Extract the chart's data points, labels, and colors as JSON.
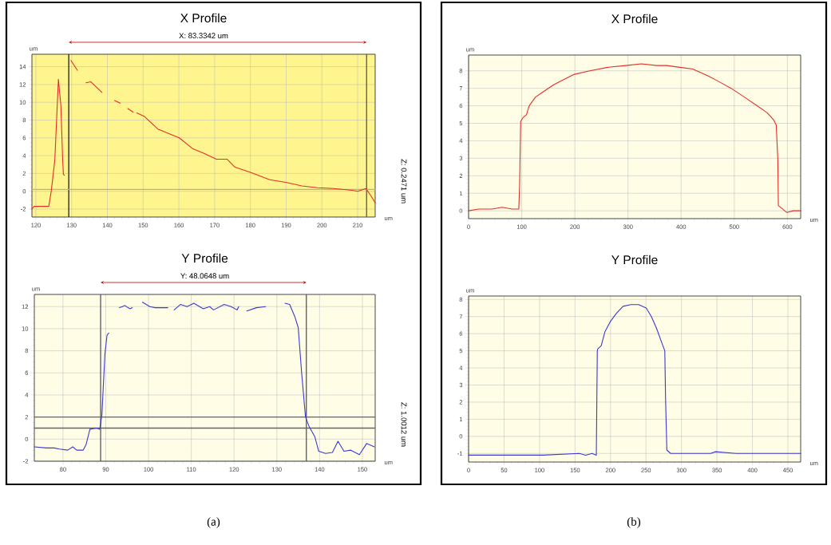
{
  "chart_data": [
    {
      "type": "line",
      "title": "X Profile",
      "xlabel": "um",
      "ylabel": "um",
      "annotations": [
        "X: 83.3342 um",
        "Z: 0.2471 um"
      ],
      "xlim": [
        118.9,
        214.9
      ],
      "ylim": [
        -2.9,
        15.4
      ],
      "xticks": [
        120,
        130,
        140,
        150,
        160,
        170,
        180,
        190,
        200,
        210
      ],
      "yticks": [
        -2,
        0,
        2,
        4,
        6,
        8,
        10,
        12,
        14
      ],
      "grid": true,
      "marker": "none",
      "line_style": "solid",
      "ref_lines": [
        {
          "axis": "x",
          "value": 129.2,
          "color": "#222222"
        },
        {
          "axis": "x",
          "value": 212.5,
          "color": "#555566"
        },
        {
          "axis": "y",
          "value": 0.2,
          "color": "#b0b0a8"
        }
      ],
      "series": [
        {
          "color": "#e0302a",
          "x": [
            118.9,
            119.5,
            123.6,
            124.3,
            125.3,
            126.3,
            127,
            127.5,
            127.7,
            128.0,
            128.9,
            129.8,
            131.6,
            132.8,
            134,
            135.4,
            138.5,
            140.7,
            142.0,
            143.6,
            144.4,
            145.7,
            147.2,
            147.7,
            148.2,
            150.4,
            154.1,
            160.1,
            163.8,
            166.8,
            170.5,
            173.5,
            175.7,
            180.2,
            185.4,
            189.9,
            194.4,
            198.8,
            203.3,
            208.5,
            210,
            212.3,
            213.7,
            214.9
          ],
          "values": [
            -2.0,
            -1.7,
            -1.7,
            0.0,
            3.5,
            12.6,
            9.6,
            3.5,
            1.9,
            1.8,
            null,
            14.7,
            13.6,
            null,
            12.2,
            12.3,
            11.1,
            null,
            10.2,
            9.9,
            null,
            9.3,
            8.9,
            null,
            8.8,
            8.4,
            7.0,
            6.0,
            4.8,
            4.3,
            3.6,
            3.6,
            2.7,
            2.1,
            1.3,
            1.0,
            0.6,
            0.4,
            0.3,
            0.1,
            0.0,
            0.3,
            -0.5,
            -1.3
          ]
        }
      ]
    },
    {
      "type": "line",
      "title": "Y Profile",
      "xlabel": "um",
      "ylabel": "um",
      "annotations": [
        "Y: 48.0648 um",
        "Z: 1.0012 um",
        "(a)"
      ],
      "xlim": [
        73.3,
        153
      ],
      "ylim": [
        -2,
        13.1
      ],
      "xticks": [
        80,
        90,
        100,
        110,
        120,
        130,
        140,
        150
      ],
      "yticks": [
        -2,
        0,
        2,
        4,
        6,
        8,
        10,
        12
      ],
      "grid": true,
      "marker": "none",
      "line_style": "solid",
      "ref_lines": [
        {
          "axis": "x",
          "value": 88.8,
          "color": "#555566"
        },
        {
          "axis": "x",
          "value": 136.9,
          "color": "#555566"
        },
        {
          "axis": "y",
          "value": 2.0,
          "color": "#666666"
        },
        {
          "axis": "y",
          "value": 1.0,
          "color": "#666666"
        }
      ],
      "series": [
        {
          "color": "#3a3ad0",
          "x": [
            73.3,
            76.1,
            77.9,
            79.2,
            81.1,
            82.3,
            83.2,
            84.7,
            85.4,
            86.3,
            87.9,
            88.6,
            89.1,
            89.8,
            90.3,
            90.7,
            92,
            93.2,
            93.9,
            94.5,
            95.2,
            95.7,
            96.2,
            97.3,
            98.6,
            100.3,
            101.6,
            104.5,
            105.2,
            106,
            107.5,
            109,
            110.6,
            112.8,
            114.3,
            115.2,
            117.7,
            119.3,
            120.7,
            121.1,
            122,
            123,
            125.2,
            127.4,
            129.6,
            131.9,
            133,
            134.2,
            135,
            135.8,
            136.7,
            137.6,
            138.9,
            139.8,
            141.4,
            143,
            144.3,
            145.7,
            147.3,
            149.3,
            151,
            152.8
          ],
          "values": [
            -0.7,
            -0.8,
            -0.8,
            -0.9,
            -1.0,
            -0.7,
            -1.0,
            -1.0,
            -0.5,
            0.9,
            1.0,
            0.9,
            2.2,
            7.7,
            9.4,
            9.6,
            null,
            11.9,
            12.0,
            12.1,
            11.9,
            11.8,
            11.9,
            null,
            12.4,
            12.0,
            11.9,
            11.9,
            null,
            11.7,
            12.2,
            12.0,
            12.3,
            11.8,
            12.0,
            11.7,
            12.2,
            12.0,
            11.7,
            12.0,
            null,
            11.6,
            11.9,
            12.0,
            null,
            12.3,
            12.2,
            11.1,
            10.1,
            6.0,
            2.0,
            1.1,
            0.2,
            -1.1,
            -1.3,
            -1.2,
            -0.2,
            -1.1,
            -1.0,
            -1.4,
            -0.4,
            -0.7
          ]
        }
      ]
    },
    {
      "type": "line",
      "title": "X Profile",
      "xlabel": "um",
      "ylabel": "um",
      "xlim": [
        0,
        625
      ],
      "ylim": [
        -0.45,
        8.9
      ],
      "xticks": [
        0,
        100,
        200,
        300,
        400,
        500,
        600
      ],
      "yticks": [
        0,
        1,
        2,
        3,
        4,
        5,
        6,
        7,
        8
      ],
      "grid": true,
      "marker": "none",
      "line_style": "solid",
      "series": [
        {
          "color": "#e0302a",
          "x": [
            0,
            19,
            44,
            63,
            82,
            94.5,
            96,
            98,
            101.8,
            109,
            114,
            126,
            140.6,
            160,
            179,
            199,
            228,
            262,
            296,
            325,
            354,
            373,
            397.5,
            422,
            451,
            470,
            494,
            519,
            543,
            562,
            574,
            579,
            582,
            583,
            591,
            599,
            611,
            625
          ],
          "values": [
            0.0,
            0.1,
            0.1,
            0.2,
            0.1,
            0.1,
            1.4,
            5.1,
            5.3,
            5.5,
            6.0,
            6.5,
            6.8,
            7.2,
            7.5,
            7.8,
            8.0,
            8.2,
            8.3,
            8.4,
            8.3,
            8.3,
            8.2,
            8.1,
            7.7,
            7.4,
            7.0,
            6.5,
            6.0,
            5.6,
            5.2,
            4.9,
            2.9,
            0.3,
            0.1,
            -0.1,
            0.0,
            0.0
          ]
        }
      ]
    },
    {
      "type": "line",
      "title": "Y Profile",
      "xlabel": "um",
      "ylabel": "um",
      "annotations": [
        "(b)"
      ],
      "xlim": [
        0,
        468
      ],
      "ylim": [
        -1.5,
        8.2
      ],
      "xticks": [
        0,
        50,
        100,
        150,
        200,
        250,
        300,
        350,
        400,
        450
      ],
      "yticks": [
        -1,
        0,
        1,
        2,
        3,
        4,
        5,
        6,
        7,
        8
      ],
      "grid": true,
      "marker": "none",
      "line_style": "solid",
      "series": [
        {
          "color": "#3a3ad0",
          "x": [
            0,
            61.7,
            105,
            156,
            165,
            174,
            180,
            181.4,
            182,
            187,
            192,
            199.6,
            208.6,
            217.7,
            228.6,
            239.5,
            250.4,
            257.6,
            265,
            272,
            276.5,
            277.6,
            279.4,
            284.8,
            304.8,
            341,
            348,
            377,
            468
          ],
          "values": [
            -1.1,
            -1.1,
            -1.1,
            -1.0,
            -1.1,
            -1.0,
            -1.1,
            5.0,
            5.1,
            5.3,
            6.1,
            6.7,
            7.2,
            7.6,
            7.7,
            7.7,
            7.5,
            7.0,
            6.3,
            5.5,
            5.0,
            2.2,
            -0.8,
            -1.0,
            -1.0,
            -1.0,
            -0.9,
            -1.0,
            -1.0
          ]
        }
      ]
    }
  ]
}
